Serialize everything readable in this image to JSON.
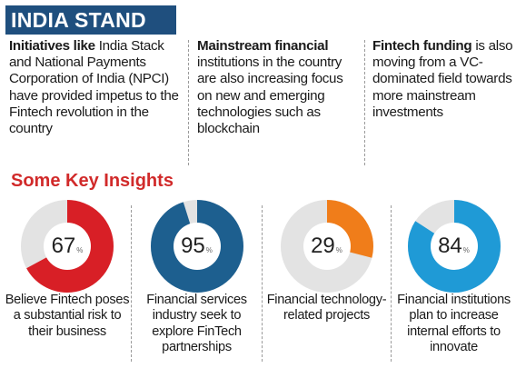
{
  "header": {
    "title": "INDIA STAND"
  },
  "initiatives": [
    {
      "lead": "Initiatives like",
      "text": "India Stack and National Payments Corporation of India (NPCI) have provided impetus to the Fintech revolution in the country"
    },
    {
      "lead": "Mainstream financial",
      "text": "institutions in the country are also increasing focus on new and emerging technologies such as blockchain"
    },
    {
      "lead": "Fintech funding",
      "text": "is also moving from a VC-dominated field towards more mainstream investments"
    }
  ],
  "insights": {
    "title": "Some Key Insights",
    "items": [
      {
        "value": "67",
        "unit": "%",
        "fraction": 0.67,
        "color": "#d81f26",
        "caption": "Believe Fintech poses a substantial risk to their business"
      },
      {
        "value": "95",
        "unit": "%",
        "fraction": 0.95,
        "color": "#1d5f8f",
        "caption": "Financial services industry seek to explore FinTech partnerships"
      },
      {
        "value": "29",
        "unit": "%",
        "fraction": 0.29,
        "color": "#f07d1a",
        "caption": "Financial technology-related projects"
      },
      {
        "value": "84",
        "unit": "%",
        "fraction": 0.84,
        "color": "#1f9ad6",
        "caption": "Financial institutions plan to increase internal efforts to innovate"
      }
    ]
  }
}
